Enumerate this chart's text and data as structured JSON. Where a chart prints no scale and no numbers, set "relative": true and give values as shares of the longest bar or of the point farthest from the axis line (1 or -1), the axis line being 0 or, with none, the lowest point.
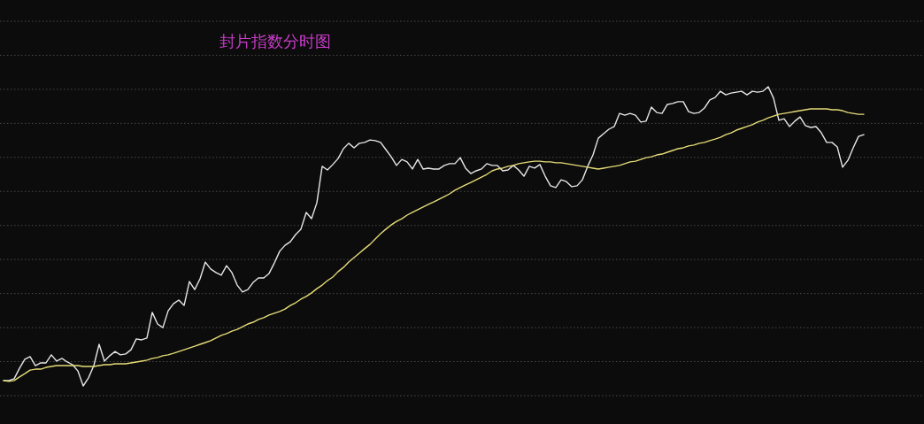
{
  "chart_data": {
    "type": "line",
    "title": "封片指数分时图",
    "relative": true,
    "grid": "y",
    "categories": [
      null,
      null,
      null,
      null,
      null,
      null,
      null,
      null,
      null,
      null,
      null,
      null,
      null,
      null,
      null,
      null,
      null,
      null,
      null,
      null,
      null,
      null,
      null,
      null,
      null,
      null,
      null,
      null,
      null,
      null,
      null,
      null,
      null,
      null,
      null,
      null,
      null,
      null,
      null,
      null,
      null,
      null,
      null,
      null,
      null,
      null,
      null,
      null,
      null,
      null,
      null,
      null,
      null,
      null,
      null,
      null,
      null,
      null,
      null,
      null,
      null,
      null,
      null,
      null,
      null,
      null,
      null,
      null,
      null,
      null,
      null,
      null,
      null,
      null,
      null,
      null,
      null,
      null,
      null,
      null,
      null,
      null,
      null,
      null,
      null,
      null,
      null,
      null,
      null,
      null,
      null,
      null,
      null,
      null,
      null,
      null,
      null,
      null,
      null,
      null,
      null,
      null,
      null,
      null,
      null,
      null,
      null,
      null,
      null,
      null,
      null,
      null,
      null,
      null,
      null,
      null,
      null,
      null,
      null,
      null,
      null,
      null,
      null,
      null,
      null,
      null,
      null,
      null,
      null,
      null,
      null,
      null,
      null,
      null,
      null,
      null,
      null,
      null,
      null,
      null,
      null,
      null,
      null,
      null,
      null,
      null,
      null,
      null,
      null,
      null,
      null,
      null,
      null,
      null,
      null,
      null,
      null,
      null,
      null,
      null,
      null,
      null,
      null
    ],
    "series": [
      {
        "color": "#e6e6e6",
        "values": [
          0.018,
          0.018,
          0.024,
          0.059,
          0.089,
          0.098,
          0.068,
          0.077,
          0.077,
          0.104,
          0.083,
          0.092,
          0.08,
          0.071,
          0.05,
          0,
          0.027,
          0.068,
          0.139,
          0.083,
          0.101,
          0.115,
          0.104,
          0.107,
          0.121,
          0.157,
          0.154,
          0.16,
          0.246,
          0.207,
          0.195,
          0.251,
          0.275,
          0.287,
          0.269,
          0.349,
          0.322,
          0.358,
          0.414,
          0.391,
          0.379,
          0.37,
          0.402,
          0.379,
          0.337,
          0.314,
          0.322,
          0.346,
          0.361,
          0.361,
          0.376,
          0.411,
          0.45,
          0.47,
          0.482,
          0.506,
          0.524,
          0.58,
          0.559,
          0.612,
          0.734,
          0.722,
          0.74,
          0.76,
          0.793,
          0.811,
          0.796,
          0.811,
          0.814,
          0.822,
          0.82,
          0.814,
          0.79,
          0.766,
          0.737,
          0.757,
          0.749,
          0.725,
          0.757,
          0.725,
          0.728,
          0.725,
          0.725,
          0.737,
          0.743,
          0.743,
          0.763,
          0.728,
          0.71,
          0.719,
          0.725,
          0.743,
          0.737,
          0.737,
          0.719,
          0.722,
          0.737,
          0.722,
          0.701,
          0.734,
          0.728,
          0.74,
          0.701,
          0.669,
          0.663,
          0.689,
          0.683,
          0.666,
          0.669,
          0.689,
          0.734,
          0.772,
          0.828,
          0.843,
          0.858,
          0.867,
          0.911,
          0.905,
          0.911,
          0.905,
          0.882,
          0.885,
          0.932,
          0.914,
          0.911,
          0.941,
          0.944,
          0.95,
          0.95,
          0.917,
          0.911,
          0.914,
          0.929,
          0.956,
          0.964,
          0.985,
          0.973,
          0.979,
          0.982,
          0.985,
          0.973,
          0.985,
          0.982,
          0.985,
          1,
          0.962,
          0.888,
          0.893,
          0.867,
          0.885,
          0.899,
          0.87,
          0.864,
          0.867,
          0.846,
          0.814,
          0.814,
          0.799,
          0.731,
          0.754,
          0.796,
          0.834,
          0.84
        ]
      },
      {
        "color": "#e6dc78",
        "values": [
          0.018,
          0.015,
          0.018,
          0.03,
          0.041,
          0.053,
          0.056,
          0.056,
          0.062,
          0.065,
          0.068,
          0.068,
          0.068,
          0.068,
          0.068,
          0.065,
          0.065,
          0.065,
          0.068,
          0.071,
          0.071,
          0.074,
          0.074,
          0.074,
          0.077,
          0.08,
          0.083,
          0.086,
          0.092,
          0.095,
          0.101,
          0.104,
          0.109,
          0.115,
          0.121,
          0.127,
          0.133,
          0.139,
          0.145,
          0.151,
          0.16,
          0.169,
          0.175,
          0.183,
          0.189,
          0.198,
          0.207,
          0.213,
          0.222,
          0.228,
          0.237,
          0.243,
          0.249,
          0.257,
          0.269,
          0.278,
          0.29,
          0.299,
          0.311,
          0.325,
          0.337,
          0.352,
          0.364,
          0.382,
          0.396,
          0.414,
          0.429,
          0.444,
          0.459,
          0.473,
          0.491,
          0.509,
          0.524,
          0.538,
          0.55,
          0.559,
          0.571,
          0.58,
          0.589,
          0.598,
          0.607,
          0.615,
          0.624,
          0.633,
          0.642,
          0.654,
          0.663,
          0.672,
          0.68,
          0.689,
          0.698,
          0.707,
          0.719,
          0.725,
          0.728,
          0.734,
          0.737,
          0.743,
          0.746,
          0.749,
          0.751,
          0.751,
          0.749,
          0.749,
          0.746,
          0.746,
          0.743,
          0.74,
          0.737,
          0.734,
          0.731,
          0.728,
          0.725,
          0.728,
          0.731,
          0.734,
          0.737,
          0.743,
          0.749,
          0.751,
          0.757,
          0.763,
          0.766,
          0.772,
          0.775,
          0.781,
          0.787,
          0.793,
          0.796,
          0.802,
          0.805,
          0.811,
          0.814,
          0.82,
          0.825,
          0.831,
          0.84,
          0.846,
          0.855,
          0.861,
          0.867,
          0.873,
          0.882,
          0.888,
          0.896,
          0.902,
          0.908,
          0.911,
          0.914,
          0.917,
          0.92,
          0.923,
          0.926,
          0.926,
          0.926,
          0.926,
          0.923,
          0.923,
          0.92,
          0.914,
          0.911,
          0.908,
          0.908
        ]
      }
    ]
  }
}
